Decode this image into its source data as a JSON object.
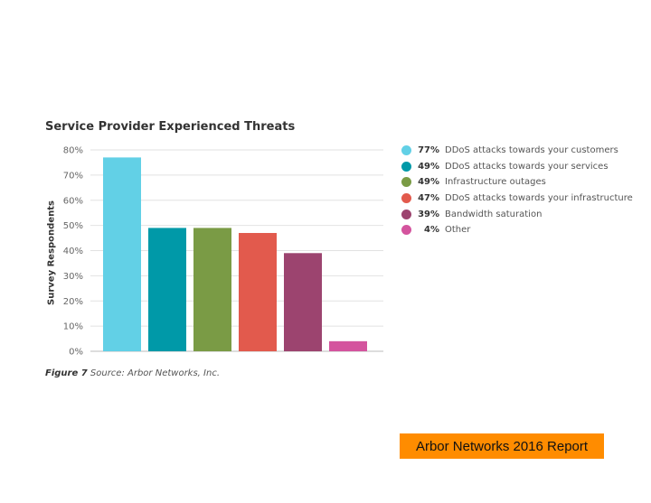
{
  "chart_data": {
    "type": "bar",
    "title": "Service Provider Experienced Threats",
    "xlabel": "",
    "ylabel": "Survey Respondents",
    "ylim": [
      0,
      80
    ],
    "yticks": [
      "0%",
      "10%",
      "20%",
      "30%",
      "40%",
      "50%",
      "60%",
      "70%",
      "80%"
    ],
    "ytick_values": [
      0,
      10,
      20,
      30,
      40,
      50,
      60,
      70,
      80
    ],
    "grid": true,
    "legend_position": "right",
    "categories": [
      "DDoS attacks towards your customers",
      "DDoS attacks towards your services",
      "Infrastructure outages",
      "DDoS attacks towards your infrastructure",
      "Bandwidth saturation",
      "Other"
    ],
    "values": [
      77,
      49,
      49,
      47,
      39,
      4
    ],
    "value_labels": [
      "77%",
      "49%",
      "49%",
      "47%",
      "39%",
      "4%"
    ],
    "colors": [
      "#62d0e6",
      "#0099a8",
      "#7a9b45",
      "#e25a4d",
      "#9c446f",
      "#d4549e"
    ]
  },
  "caption": {
    "figure": "Figure 7",
    "source": "Source: Arbor Networks, Inc."
  },
  "badge": {
    "label": "Arbor Networks 2016 Report",
    "color": "#ff8c00"
  }
}
